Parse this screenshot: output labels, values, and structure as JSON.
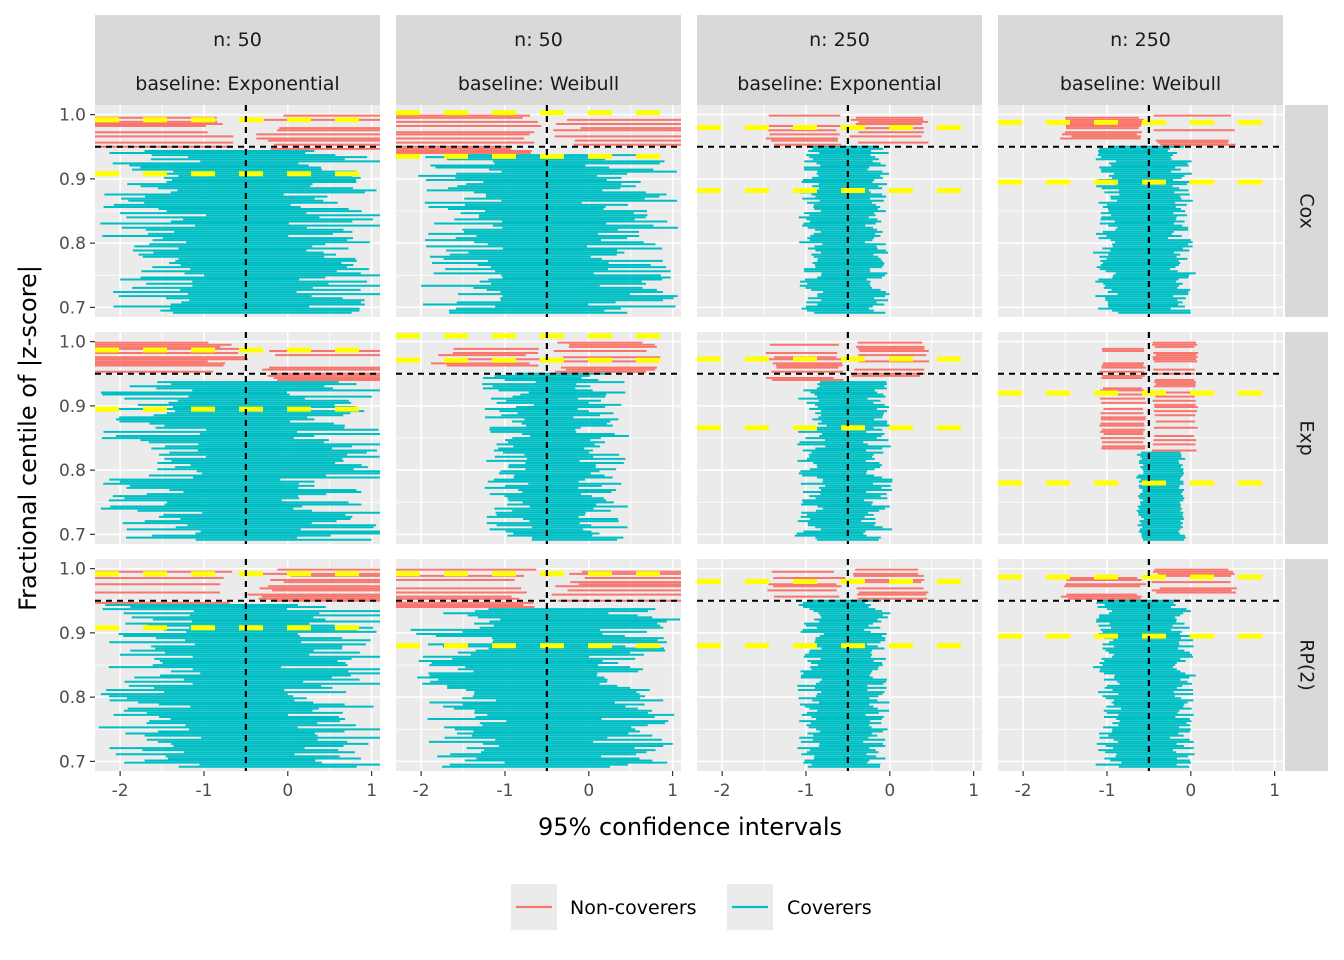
{
  "chart_data": {
    "type": "interval-facet",
    "xlabel": "95% confidence intervals",
    "ylabel": "Fractional centile of |z-score|",
    "xlim": [
      -2.3,
      1.1
    ],
    "ylim": [
      0.685,
      1.015
    ],
    "x_ticks": [
      -2,
      -1,
      0,
      1
    ],
    "x_tick_labels": [
      "-2",
      "-1",
      "0",
      "1"
    ],
    "y_ticks": [
      0.7,
      0.8,
      0.9,
      1.0
    ],
    "y_tick_labels": [
      "0.7",
      "0.8",
      "0.9",
      "1.0"
    ],
    "columns": [
      {
        "n_label": "n: 50",
        "baseline_label": "baseline: Exponential"
      },
      {
        "n_label": "n: 50",
        "baseline_label": "baseline: Weibull"
      },
      {
        "n_label": "n: 250",
        "baseline_label": "baseline: Exponential"
      },
      {
        "n_label": "n: 250",
        "baseline_label": "baseline: Weibull"
      }
    ],
    "rows": [
      {
        "label": "Cox"
      },
      {
        "label": "Exp"
      },
      {
        "label": "RP(2)"
      }
    ],
    "reference_lines": {
      "true_value": -0.5,
      "nominal_coverage": 0.95
    },
    "mcse_band_lines": [
      [
        [
          0.908,
          0.992
        ],
        [
          0.935,
          1.003
        ],
        [
          0.882,
          0.98
        ],
        [
          0.895,
          0.988
        ]
      ],
      [
        [
          0.895,
          0.987
        ],
        [
          0.971,
          1.009
        ],
        [
          0.866,
          0.973
        ],
        [
          0.78,
          0.92
        ]
      ],
      [
        [
          0.908,
          0.992
        ],
        [
          0.88,
          0.992
        ],
        [
          0.88,
          0.98
        ],
        [
          0.895,
          0.987
        ]
      ]
    ],
    "panel_params": [
      [
        {
          "center": -0.5,
          "spread": 0.9,
          "halfwidth": 1.1,
          "noncover_frac": 0.055
        },
        {
          "center": -0.5,
          "spread": 0.75,
          "halfwidth": 1.0,
          "noncover_frac": 0.06
        },
        {
          "center": -0.55,
          "spread": 0.2,
          "halfwidth": 0.4,
          "noncover_frac": 0.05
        },
        {
          "center": -0.55,
          "spread": 0.2,
          "halfwidth": 0.45,
          "noncover_frac": 0.05
        }
      ],
      [
        {
          "center": -0.5,
          "spread": 0.9,
          "halfwidth": 1.1,
          "noncover_frac": 0.06
        },
        {
          "center": -0.4,
          "spread": 0.45,
          "halfwidth": 0.55,
          "noncover_frac": 0.05
        },
        {
          "center": -0.55,
          "spread": 0.25,
          "halfwidth": 0.4,
          "noncover_frac": 0.06
        },
        {
          "center": -0.35,
          "spread": 0.05,
          "halfwidth": 0.25,
          "noncover_frac": 0.17
        }
      ],
      [
        {
          "center": -0.5,
          "spread": 0.9,
          "halfwidth": 1.1,
          "noncover_frac": 0.055
        },
        {
          "center": -0.5,
          "spread": 0.75,
          "halfwidth": 1.05,
          "noncover_frac": 0.06
        },
        {
          "center": -0.55,
          "spread": 0.2,
          "halfwidth": 0.4,
          "noncover_frac": 0.05
        },
        {
          "center": -0.55,
          "spread": 0.2,
          "halfwidth": 0.45,
          "noncover_frac": 0.05
        }
      ]
    ],
    "legend": {
      "position": "bottom",
      "items": [
        {
          "label": "Non-coverers",
          "color": "#F8766D"
        },
        {
          "label": "Coverers",
          "color": "#00BFC4"
        }
      ]
    },
    "colors": {
      "noncoverer": "#F8766D",
      "coverer": "#00BFC4",
      "mcse_line": "#FFFF00",
      "reference": "#000000",
      "panel_bg": "#EBEBEB",
      "strip_bg": "#D9D9D9",
      "grid": "#FFFFFF"
    }
  }
}
